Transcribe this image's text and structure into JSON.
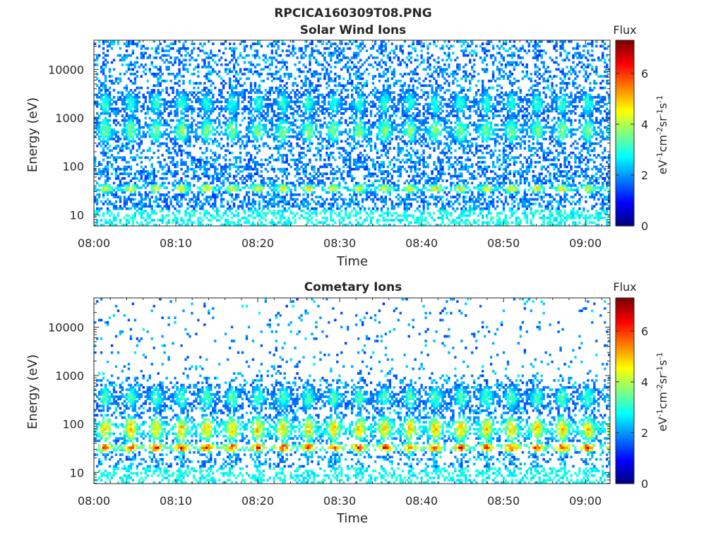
{
  "figure": {
    "title": "RPCICA160309T08.PNG"
  },
  "colors": {
    "axis": "#262626",
    "background": "#ffffff",
    "colormap": "jet"
  },
  "chart_data": [
    {
      "type": "heatmap",
      "title": "Solar Wind Ions",
      "xlabel": "Time",
      "ylabel": "Energy (eV)",
      "x_ticks": [
        "08:00",
        "08:10",
        "08:20",
        "08:30",
        "08:40",
        "08:50",
        "09:00"
      ],
      "y_ticks": [
        "10",
        "100",
        "1000",
        "10000"
      ],
      "y_scale": "log",
      "ylim": [
        5.9,
        40000
      ],
      "xlim": [
        "08:00",
        "09:03"
      ],
      "colorbar": {
        "title": "Flux",
        "label": "eV-1cm-2sr-1s-1",
        "ticks": [
          "0",
          "2",
          "4",
          "6"
        ],
        "range": [
          0,
          7.3
        ]
      },
      "features": {
        "pulse_period_minutes": 3.1,
        "bands": [
          {
            "energy_eV": 35,
            "flux": 4.6
          },
          {
            "energy_eV": 550,
            "flux": 3.7
          },
          {
            "energy_eV": 2000,
            "flux": 3.1
          }
        ],
        "background_flux": 2.2
      }
    },
    {
      "type": "heatmap",
      "title": "Cometary Ions",
      "xlabel": "Time",
      "ylabel": "Energy (eV)",
      "x_ticks": [
        "08:00",
        "08:10",
        "08:20",
        "08:30",
        "08:40",
        "08:50",
        "09:00"
      ],
      "y_ticks": [
        "10",
        "100",
        "1000",
        "10000"
      ],
      "y_scale": "log",
      "ylim": [
        5.9,
        40000
      ],
      "xlim": [
        "08:00",
        "09:03"
      ],
      "colorbar": {
        "title": "Flux",
        "label": "eV-1cm-2sr-1s-1",
        "ticks": [
          "0",
          "2",
          "4",
          "6"
        ],
        "range": [
          0,
          7.3
        ]
      },
      "features": {
        "pulse_period_minutes": 3.1,
        "bands": [
          {
            "energy_eV": 33,
            "flux": 6.2
          },
          {
            "energy_eV": 80,
            "flux": 4.8
          },
          {
            "energy_eV": 350,
            "flux": 3.3
          }
        ],
        "background_flux": 2.0
      }
    }
  ]
}
